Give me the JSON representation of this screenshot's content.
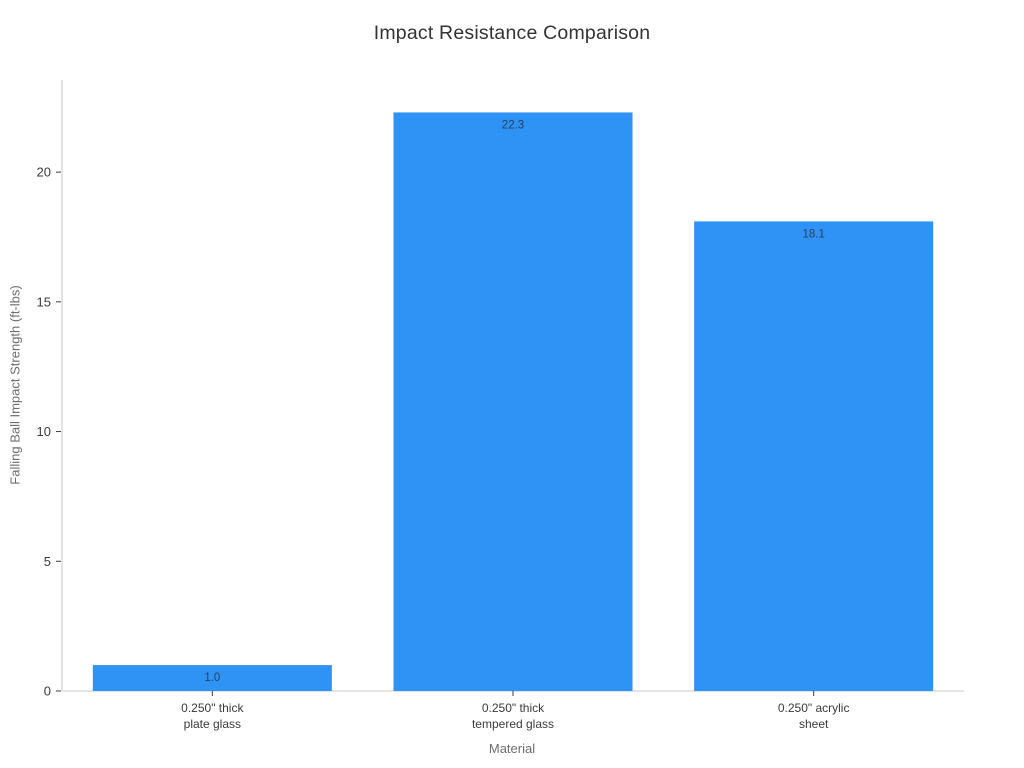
{
  "chart_data": {
    "type": "bar",
    "title": "Impact Resistance Comparison",
    "xlabel": "Material",
    "ylabel": "Falling Ball Impact Strength (ft-lbs)",
    "categories": [
      "0.250\" thick\nplate glass",
      "0.250\" thick\ntempered glass",
      "0.250\" acrylic\nsheet"
    ],
    "values": [
      1.0,
      22.3,
      18.1
    ],
    "value_labels": [
      "1.0",
      "22.3",
      "18.1"
    ],
    "yticks": [
      0,
      5,
      10,
      15,
      20
    ],
    "ylim": [
      0,
      23.55
    ],
    "grid": false,
    "legend": null,
    "colors": {
      "bar": "#2f93f5",
      "value_label": "#2a3f5f",
      "spine": "#d4d4d4",
      "tick_mark": "#3b3b3b",
      "tick_label": "#3b3b3b",
      "axis_title": "#6e6e6e",
      "title": "#333333",
      "background": "#ffffff"
    }
  }
}
